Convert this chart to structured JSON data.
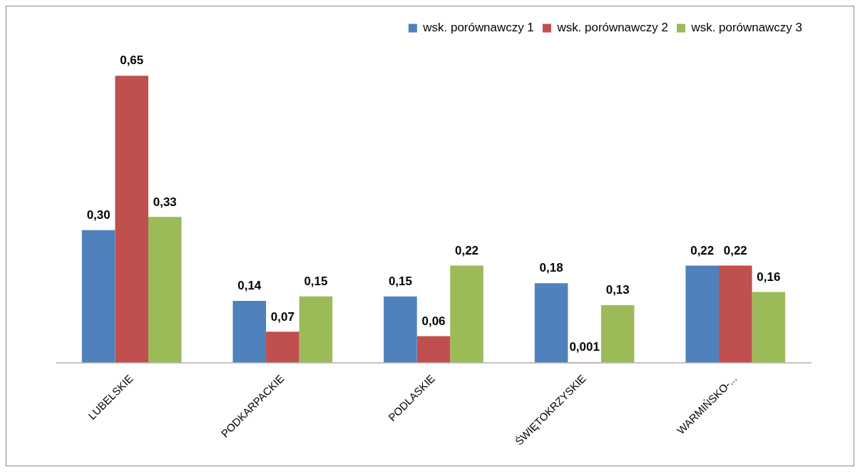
{
  "chart_data": {
    "type": "bar",
    "tick_labels": "x",
    "grid": false,
    "legend": "top right",
    "categories": [
      "LUBELSKIE",
      "PODKARPACKIE",
      "PODLASKIE",
      "ŚWIĘTOKRZYSKIE",
      "WARMIŃSKO-..."
    ],
    "series": [
      {
        "name": "wsk. porównawczy 1",
        "color": "#4f81bd",
        "values": [
          0.3,
          0.14,
          0.15,
          0.18,
          0.22
        ],
        "value_labels": [
          "0,30",
          "0,14",
          "0,15",
          "0,18",
          "0,22"
        ]
      },
      {
        "name": "wsk. porównawczy 2",
        "color": "#c0504d",
        "values": [
          0.65,
          0.07,
          0.06,
          0.001,
          0.22
        ],
        "value_labels": [
          "0,65",
          "0,07",
          "0,06",
          "0,001",
          "0,22"
        ]
      },
      {
        "name": "wsk. porównawczy 3",
        "color": "#9bbb59",
        "values": [
          0.33,
          0.15,
          0.22,
          0.13,
          0.16
        ],
        "value_labels": [
          "0,33",
          "0,15",
          "0,22",
          "0,13",
          "0,16"
        ]
      }
    ]
  }
}
